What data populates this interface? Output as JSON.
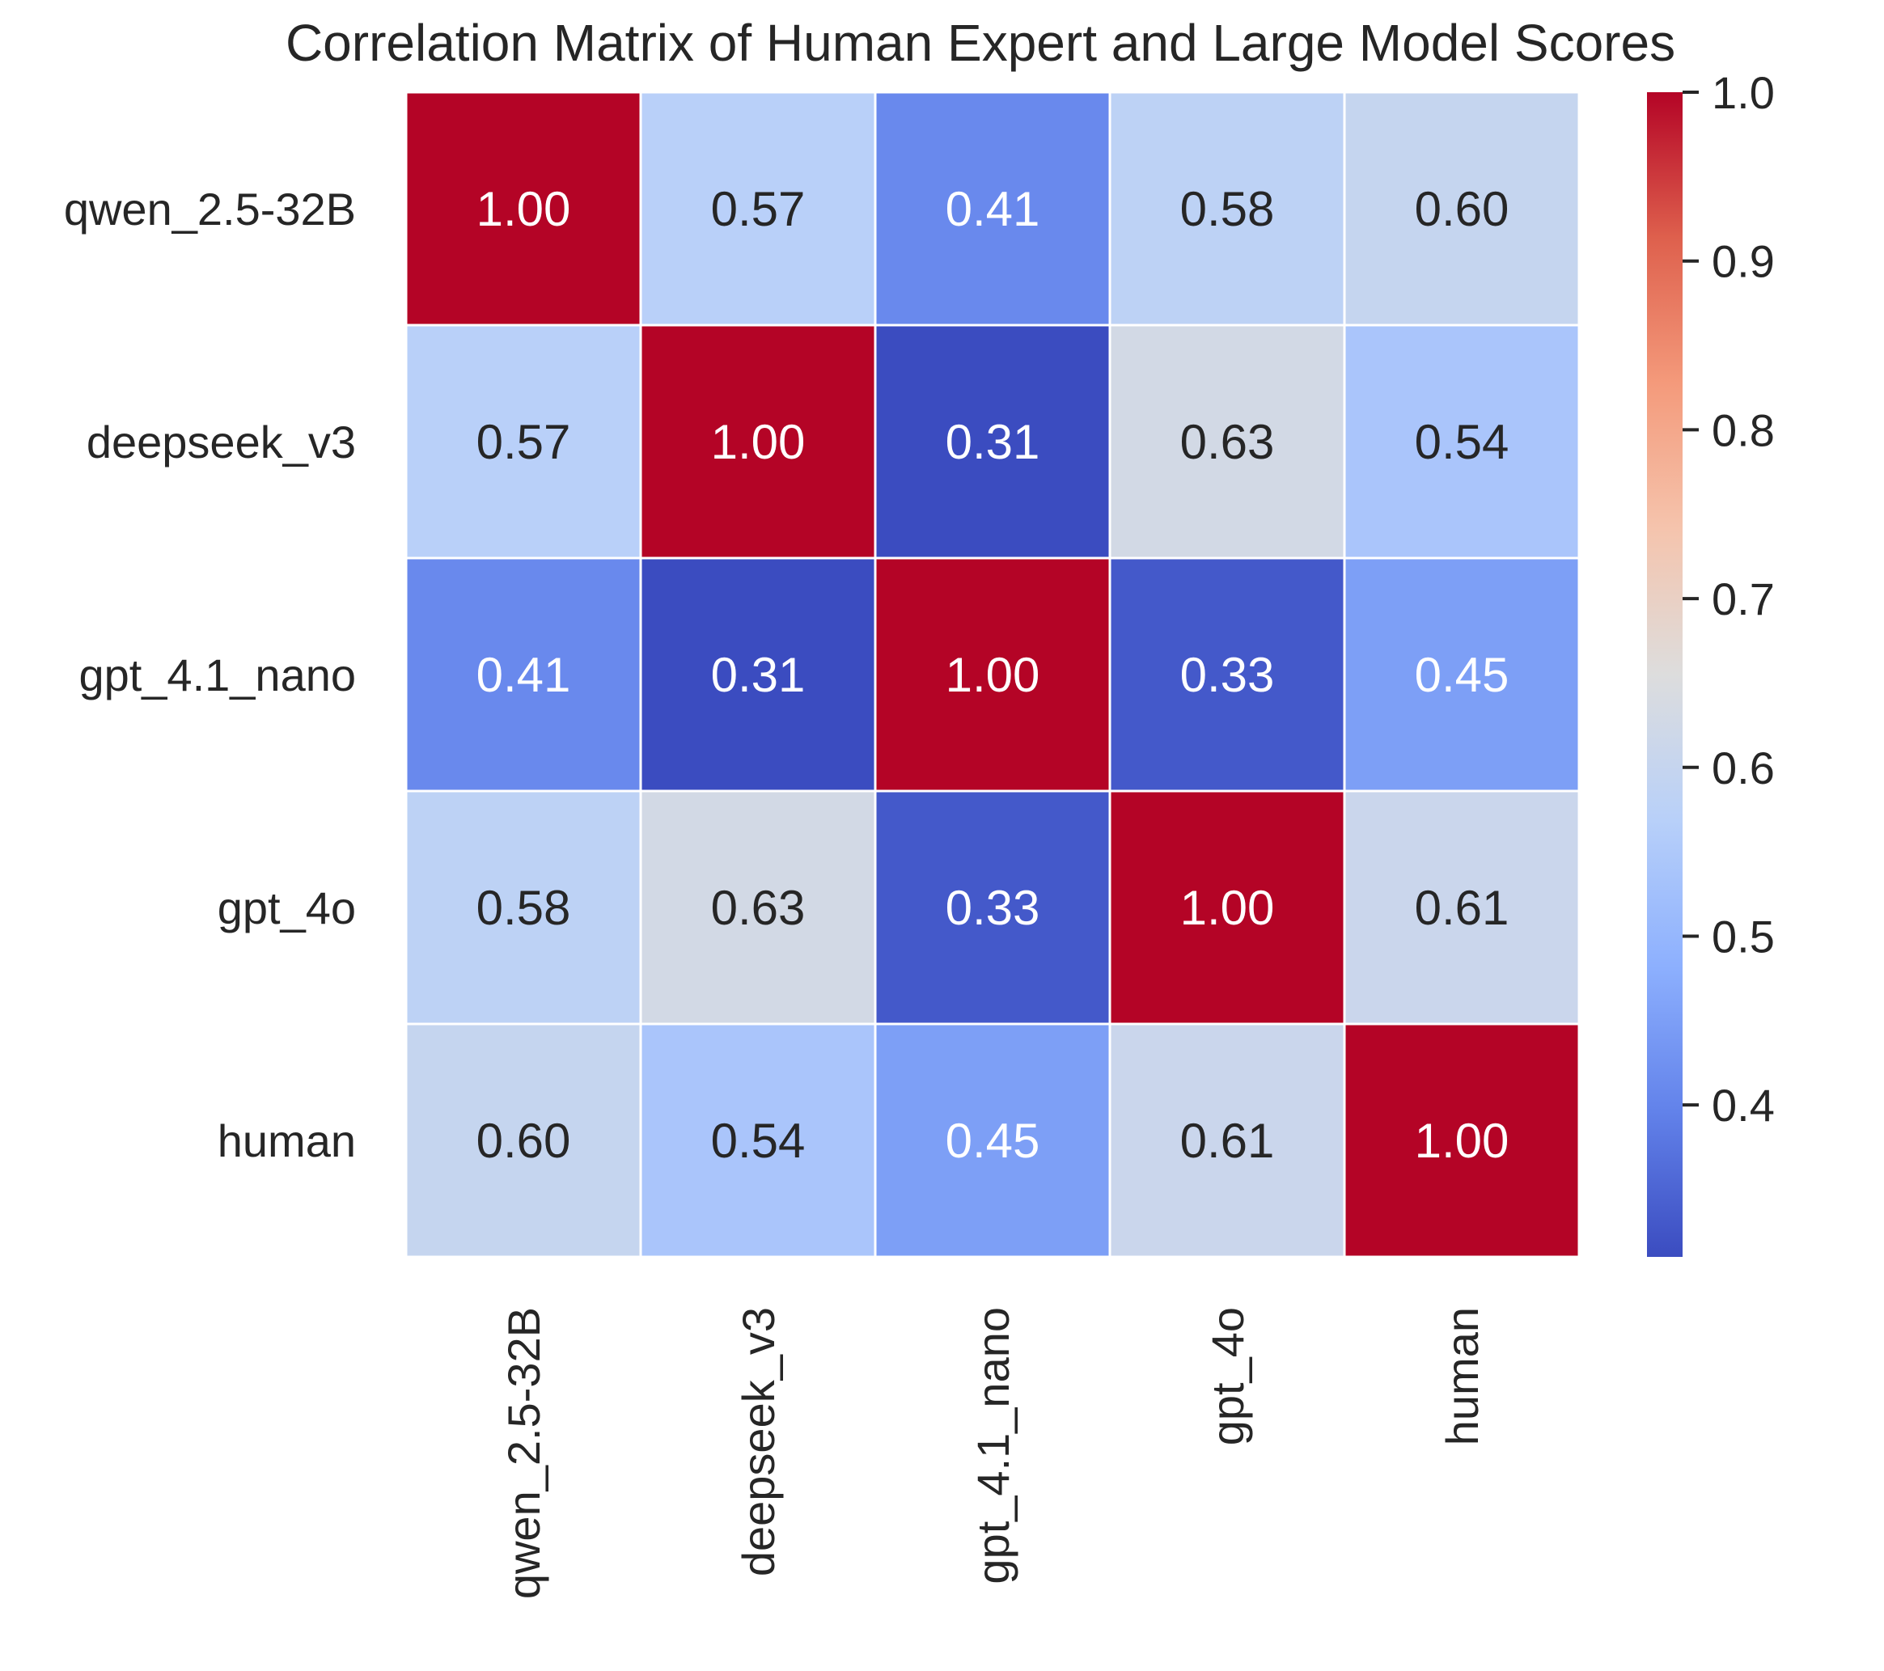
{
  "chart_data": {
    "type": "heatmap",
    "title": "Correlation Matrix of Human Expert and Large Model Scores",
    "row_labels": [
      "qwen_2.5-32B",
      "deepseek_v3",
      "gpt_4.1_nano",
      "gpt_4o",
      "human"
    ],
    "col_labels": [
      "qwen_2.5-32B",
      "deepseek_v3",
      "gpt_4.1_nano",
      "gpt_4o",
      "human"
    ],
    "values": [
      [
        1.0,
        0.57,
        0.41,
        0.58,
        0.6
      ],
      [
        0.57,
        1.0,
        0.31,
        0.63,
        0.54
      ],
      [
        0.41,
        0.31,
        1.0,
        0.33,
        0.45
      ],
      [
        0.58,
        0.63,
        0.33,
        1.0,
        0.61
      ],
      [
        0.6,
        0.54,
        0.45,
        0.61,
        1.0
      ]
    ],
    "annotation_format": "0.00",
    "colormap": "coolwarm",
    "colorbar": {
      "range": [
        0.31,
        1.0
      ],
      "ticks": [
        0.4,
        0.5,
        0.6,
        0.7,
        0.8,
        0.9,
        1.0
      ],
      "tick_labels": [
        "0.4",
        "0.5",
        "0.6",
        "0.7",
        "0.8",
        "0.9",
        "1.0"
      ]
    },
    "xlabel": "",
    "ylabel": ""
  },
  "colors": {
    "text_dark": "#262626",
    "text_light": "#ffffff",
    "cell_border": "#ffffff",
    "tick": "#262626"
  }
}
